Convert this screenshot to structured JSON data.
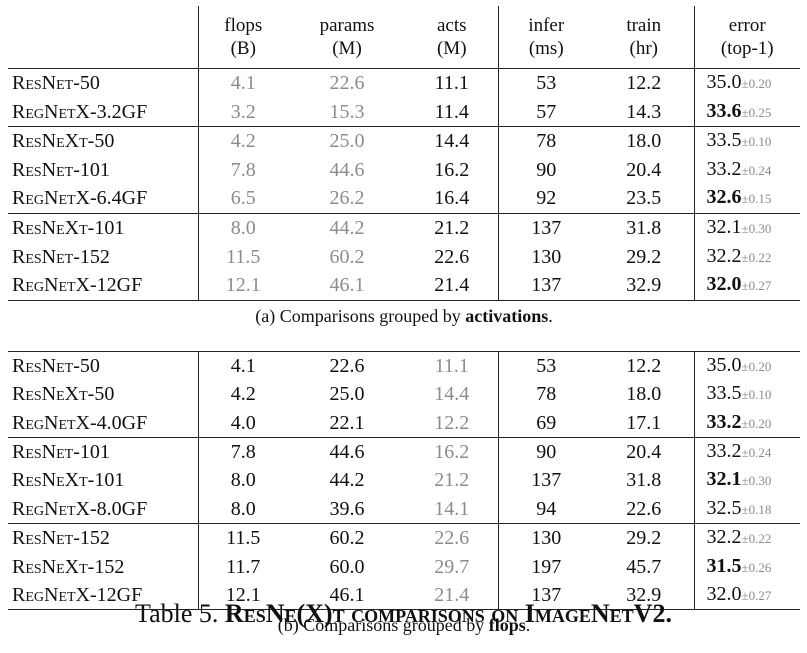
{
  "header": {
    "row1": [
      "flops",
      "params",
      "acts",
      "infer",
      "train",
      "error"
    ],
    "row2": [
      "(B)",
      "(M)",
      "(M)",
      "(ms)",
      "(hr)",
      "(top-1)"
    ]
  },
  "table_a": {
    "groups": [
      [
        {
          "name": "ResNet-50",
          "flops": "4.1",
          "params": "22.6",
          "acts": "11.1",
          "infer": "53",
          "train": "12.2",
          "err": "35.0",
          "pm": "±0.20",
          "bold": false
        },
        {
          "name": "RegNetX-3.2GF",
          "flops": "3.2",
          "params": "15.3",
          "acts": "11.4",
          "infer": "57",
          "train": "14.3",
          "err": "33.6",
          "pm": "±0.25",
          "bold": true
        }
      ],
      [
        {
          "name": "ResNeXt-50",
          "flops": "4.2",
          "params": "25.0",
          "acts": "14.4",
          "infer": "78",
          "train": "18.0",
          "err": "33.5",
          "pm": "±0.10",
          "bold": false
        },
        {
          "name": "ResNet-101",
          "flops": "7.8",
          "params": "44.6",
          "acts": "16.2",
          "infer": "90",
          "train": "20.4",
          "err": "33.2",
          "pm": "±0.24",
          "bold": false
        },
        {
          "name": "RegNetX-6.4GF",
          "flops": "6.5",
          "params": "26.2",
          "acts": "16.4",
          "infer": "92",
          "train": "23.5",
          "err": "32.6",
          "pm": "±0.15",
          "bold": true
        }
      ],
      [
        {
          "name": "ResNeXt-101",
          "flops": "8.0",
          "params": "44.2",
          "acts": "21.2",
          "infer": "137",
          "train": "31.8",
          "err": "32.1",
          "pm": "±0.30",
          "bold": false
        },
        {
          "name": "ResNet-152",
          "flops": "11.5",
          "params": "60.2",
          "acts": "22.6",
          "infer": "130",
          "train": "29.2",
          "err": "32.2",
          "pm": "±0.22",
          "bold": false
        },
        {
          "name": "RegNetX-12GF",
          "flops": "12.1",
          "params": "46.1",
          "acts": "21.4",
          "infer": "137",
          "train": "32.9",
          "err": "32.0",
          "pm": "±0.27",
          "bold": true
        }
      ]
    ],
    "caption_prefix": "(a) Comparisons grouped by ",
    "caption_bold": "activations",
    "caption_suffix": "."
  },
  "table_b": {
    "groups": [
      [
        {
          "name": "ResNet-50",
          "flops": "4.1",
          "params": "22.6",
          "acts": "11.1",
          "infer": "53",
          "train": "12.2",
          "err": "35.0",
          "pm": "±0.20",
          "bold": false
        },
        {
          "name": "ResNeXt-50",
          "flops": "4.2",
          "params": "25.0",
          "acts": "14.4",
          "infer": "78",
          "train": "18.0",
          "err": "33.5",
          "pm": "±0.10",
          "bold": false
        },
        {
          "name": "RegNetX-4.0GF",
          "flops": "4.0",
          "params": "22.1",
          "acts": "12.2",
          "infer": "69",
          "train": "17.1",
          "err": "33.2",
          "pm": "±0.20",
          "bold": true
        }
      ],
      [
        {
          "name": "ResNet-101",
          "flops": "7.8",
          "params": "44.6",
          "acts": "16.2",
          "infer": "90",
          "train": "20.4",
          "err": "33.2",
          "pm": "±0.24",
          "bold": false
        },
        {
          "name": "ResNeXt-101",
          "flops": "8.0",
          "params": "44.2",
          "acts": "21.2",
          "infer": "137",
          "train": "31.8",
          "err": "32.1",
          "pm": "±0.30",
          "bold": true
        },
        {
          "name": "RegNetX-8.0GF",
          "flops": "8.0",
          "params": "39.6",
          "acts": "14.1",
          "infer": "94",
          "train": "22.6",
          "err": "32.5",
          "pm": "±0.18",
          "bold": false
        }
      ],
      [
        {
          "name": "ResNet-152",
          "flops": "11.5",
          "params": "60.2",
          "acts": "22.6",
          "infer": "130",
          "train": "29.2",
          "err": "32.2",
          "pm": "±0.22",
          "bold": false
        },
        {
          "name": "ResNeXt-152",
          "flops": "11.7",
          "params": "60.0",
          "acts": "29.7",
          "infer": "197",
          "train": "45.7",
          "err": "31.5",
          "pm": "±0.26",
          "bold": true
        },
        {
          "name": "RegNetX-12GF",
          "flops": "12.1",
          "params": "46.1",
          "acts": "21.4",
          "infer": "137",
          "train": "32.9",
          "err": "32.0",
          "pm": "±0.27",
          "bold": false
        }
      ]
    ],
    "caption_prefix": "(b) Comparisons grouped by ",
    "caption_bold": "flops",
    "caption_suffix": "."
  },
  "title": {
    "prefix": "Table 5. ",
    "bold": "ResNe(X)t comparisons on ImageNetV2."
  }
}
